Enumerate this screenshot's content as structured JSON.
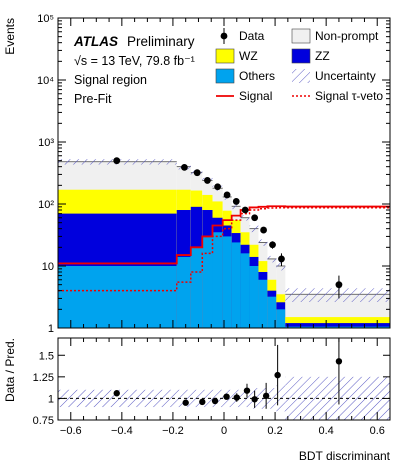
{
  "chart_data": {
    "type": "stacked-histogram",
    "main": {
      "ylabel": "Events",
      "yscale": "log",
      "ylim": [
        1,
        100000
      ],
      "y_ticks": [
        {
          "value": 1,
          "label": "1"
        },
        {
          "value": 10,
          "label": "10"
        },
        {
          "value": 100,
          "label": "10²"
        },
        {
          "value": 1000,
          "label": "10³"
        },
        {
          "value": 10000,
          "label": "10⁴"
        },
        {
          "value": 100000,
          "label": "10⁵"
        }
      ],
      "annotations": {
        "experiment": "ATLAS",
        "status": "Preliminary",
        "energy_lumi": "√s = 13 TeV, 79.8 fb⁻¹",
        "region": "Signal region",
        "fit": "Pre-Fit"
      }
    },
    "ratio": {
      "ylabel": "Data / Pred.",
      "ylim": [
        0.75,
        1.7
      ],
      "y_ticks": [
        {
          "value": 0.75,
          "label": "0.75"
        },
        {
          "value": 1.0,
          "label": "1"
        },
        {
          "value": 1.25,
          "label": "1.25"
        },
        {
          "value": 1.5,
          "label": "1.5"
        }
      ],
      "points": [
        {
          "x": -0.42,
          "y": 1.06,
          "err": 0.0
        },
        {
          "x": -0.15,
          "y": 0.95,
          "err": 0.0
        },
        {
          "x": -0.085,
          "y": 0.96,
          "err": 0.0
        },
        {
          "x": -0.035,
          "y": 0.97,
          "err": 0.02
        },
        {
          "x": 0.01,
          "y": 1.02,
          "err": 0.03
        },
        {
          "x": 0.05,
          "y": 1.01,
          "err": 0.05
        },
        {
          "x": 0.09,
          "y": 1.09,
          "err": 0.08
        },
        {
          "x": 0.12,
          "y": 0.99,
          "err": 0.1
        },
        {
          "x": 0.165,
          "y": 1.03,
          "err": 0.15
        },
        {
          "x": 0.21,
          "y": 1.27,
          "err": 0.35
        },
        {
          "x": 0.45,
          "y": 1.43,
          "err": 0.5
        }
      ]
    },
    "xlabel": "BDT discriminant",
    "xlim": [
      -0.65,
      0.65
    ],
    "x_ticks": [
      {
        "value": -0.6,
        "label": "−0.6"
      },
      {
        "value": -0.4,
        "label": "−0.4"
      },
      {
        "value": -0.2,
        "label": "−0.2"
      },
      {
        "value": 0,
        "label": "0"
      },
      {
        "value": 0.2,
        "label": "0.2"
      },
      {
        "value": 0.4,
        "label": "0.4"
      },
      {
        "value": 0.6,
        "label": "0.6"
      }
    ],
    "bins": [
      {
        "lo": -0.65,
        "hi": -0.185,
        "others": 10,
        "zz": 70,
        "wz": 170,
        "nonprompt": 480,
        "unc": 0.1,
        "signal": 11,
        "signal_tau_veto": 4
      },
      {
        "lo": -0.185,
        "hi": -0.13,
        "others": 14,
        "zz": 80,
        "wz": 170,
        "nonprompt": 400,
        "unc": 0.1,
        "signal": 15,
        "signal_tau_veto": 5.5
      },
      {
        "lo": -0.13,
        "hi": -0.085,
        "others": 20,
        "zz": 90,
        "wz": 165,
        "nonprompt": 320,
        "unc": 0.1,
        "signal": 20,
        "signal_tau_veto": 8
      },
      {
        "lo": -0.085,
        "hi": -0.045,
        "others": 30,
        "zz": 80,
        "wz": 140,
        "nonprompt": 240,
        "unc": 0.1,
        "signal": 30,
        "signal_tau_veto": 16
      },
      {
        "lo": -0.045,
        "hi": -0.005,
        "others": 35,
        "zz": 60,
        "wz": 110,
        "nonprompt": 180,
        "unc": 0.1,
        "signal": 45,
        "signal_tau_veto": 30
      },
      {
        "lo": -0.005,
        "hi": 0.03,
        "others": 30,
        "zz": 45,
        "wz": 78,
        "nonprompt": 130,
        "unc": 0.1,
        "signal": 55,
        "signal_tau_veto": 40
      },
      {
        "lo": 0.03,
        "hi": 0.065,
        "others": 24,
        "zz": 34,
        "wz": 55,
        "nonprompt": 92,
        "unc": 0.1,
        "signal": 65,
        "signal_tau_veto": 55
      },
      {
        "lo": 0.065,
        "hi": 0.1,
        "others": 16,
        "zz": 22,
        "wz": 35,
        "nonprompt": 60,
        "unc": 0.1,
        "signal": 80,
        "signal_tau_veto": 70
      },
      {
        "lo": 0.1,
        "hi": 0.135,
        "others": 10,
        "zz": 14,
        "wz": 22,
        "nonprompt": 40,
        "unc": 0.12,
        "signal": 88,
        "signal_tau_veto": 80
      },
      {
        "lo": 0.135,
        "hi": 0.17,
        "others": 6,
        "zz": 8,
        "wz": 12,
        "nonprompt": 24,
        "unc": 0.12,
        "signal": 90,
        "signal_tau_veto": 84
      },
      {
        "lo": 0.17,
        "hi": 0.205,
        "others": 3.2,
        "zz": 4,
        "wz": 6,
        "nonprompt": 13,
        "unc": 0.12,
        "signal": 92,
        "signal_tau_veto": 86
      },
      {
        "lo": 0.205,
        "hi": 0.24,
        "others": 2,
        "zz": 2.6,
        "wz": 3.5,
        "nonprompt": 10,
        "unc": 0.15,
        "signal": 92,
        "signal_tau_veto": 87
      },
      {
        "lo": 0.24,
        "hi": 0.65,
        "others": 1.05,
        "zz": 1.2,
        "wz": 1.5,
        "nonprompt": 3.5,
        "unc": 0.25,
        "signal": 91,
        "signal_tau_veto": 87
      }
    ],
    "data_points": [
      {
        "x": -0.42,
        "y": 500,
        "err": 0
      },
      {
        "x": -0.155,
        "y": 390,
        "err": 0
      },
      {
        "x": -0.105,
        "y": 320,
        "err": 0
      },
      {
        "x": -0.065,
        "y": 240,
        "err": 0
      },
      {
        "x": -0.025,
        "y": 190,
        "err": 0
      },
      {
        "x": 0.012,
        "y": 140,
        "err": 0
      },
      {
        "x": 0.048,
        "y": 110,
        "err": 0
      },
      {
        "x": 0.083,
        "y": 80,
        "err": 0
      },
      {
        "x": 0.12,
        "y": 60,
        "err": 0
      },
      {
        "x": 0.155,
        "y": 38,
        "err": 3
      },
      {
        "x": 0.19,
        "y": 22,
        "err": 3
      },
      {
        "x": 0.225,
        "y": 13,
        "err": 3
      },
      {
        "x": 0.45,
        "y": 5,
        "err": 2
      }
    ],
    "legend": {
      "placement": "top-right",
      "entries": [
        {
          "key": "data",
          "label": "Data",
          "kind": "marker"
        },
        {
          "key": "nonprompt",
          "label": "Non-prompt",
          "kind": "fill"
        },
        {
          "key": "wz",
          "label": "WZ",
          "kind": "fill"
        },
        {
          "key": "zz",
          "label": "ZZ",
          "kind": "fill"
        },
        {
          "key": "others",
          "label": "Others",
          "kind": "fill"
        },
        {
          "key": "unc",
          "label": "Uncertainty",
          "kind": "hatch"
        },
        {
          "key": "signal",
          "label": "Signal",
          "kind": "line"
        },
        {
          "key": "signal_tau_veto",
          "label": "Signal τ-veto",
          "kind": "dashed"
        }
      ]
    },
    "colors": {
      "nonprompt": "#f0f0f0",
      "wz": "#ffff00",
      "zz": "#0000dd",
      "others": "#00a3ee",
      "unc": "#5b5bc4",
      "signal": "#ee0000",
      "data": "#000000"
    }
  }
}
